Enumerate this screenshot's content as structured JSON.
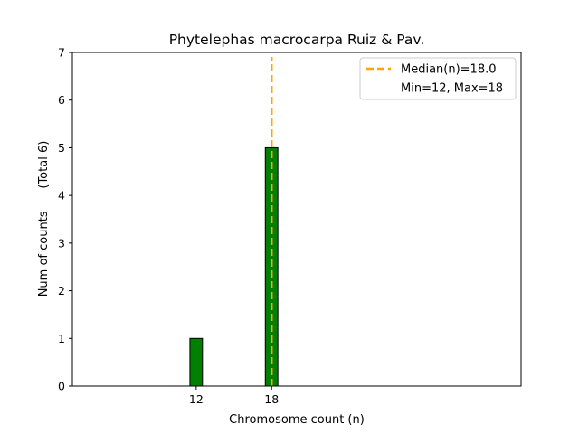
{
  "chart_data": {
    "type": "bar",
    "title": "Phytelephas macrocarpa Ruiz & Pav.",
    "xlabel": "Chromosome count (n)",
    "ylabel": "Num of counts",
    "ylabel_total": "(Total 6)",
    "ylim": [
      0,
      7
    ],
    "yticks": [
      0,
      1,
      2,
      3,
      4,
      5,
      6,
      7
    ],
    "xticks": [
      12,
      18
    ],
    "bars": [
      {
        "x": 12,
        "value": 1
      },
      {
        "x": 18,
        "value": 5
      }
    ],
    "bar_color": "#008000",
    "median": 18.0,
    "median_color": "#FFA500",
    "legend": {
      "placement": "top-right",
      "entries": [
        "Median(n)=18.0",
        "Min=12, Max=18"
      ]
    },
    "grid": false
  }
}
